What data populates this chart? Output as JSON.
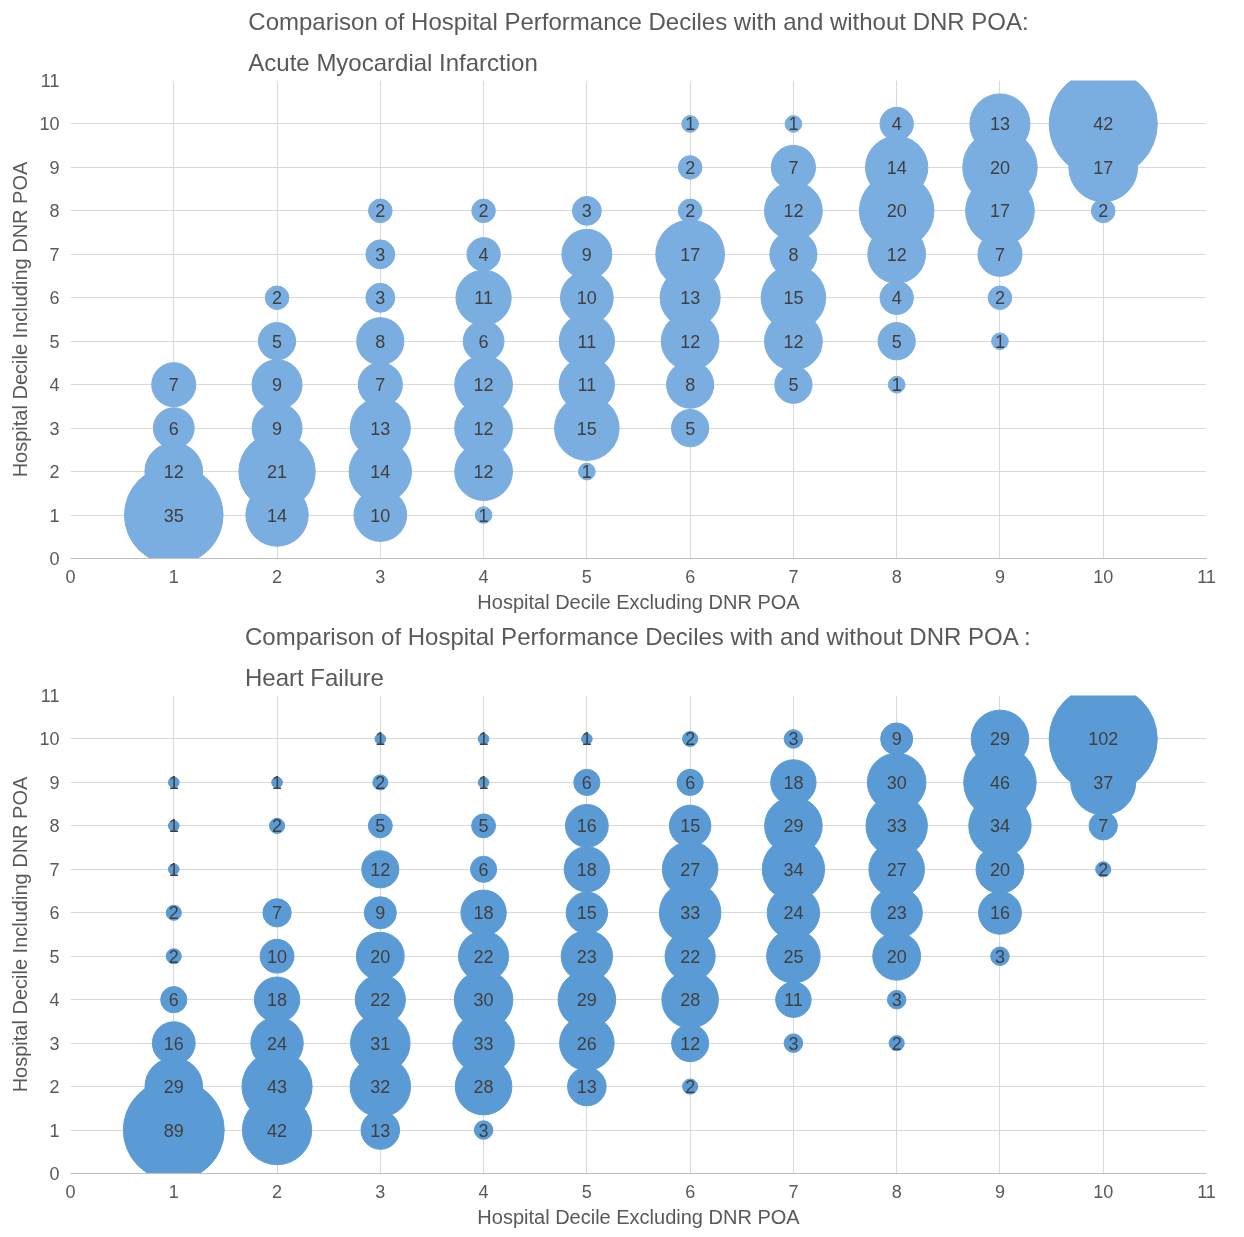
{
  "chart_data": [
    {
      "type": "bubble",
      "title": "Comparison of Hospital Performance Deciles with and without DNR POA:\nAcute Myocardial Infarction",
      "xlabel": "Hospital Decile Excluding DNR POA",
      "ylabel": "Hospital Decile Including DNR POA",
      "color": "#7aade0",
      "xlim": [
        0,
        11
      ],
      "ylim": [
        0,
        11
      ],
      "xticks": [
        0,
        1,
        2,
        3,
        4,
        5,
        6,
        7,
        8,
        9,
        10,
        11
      ],
      "yticks": [
        0,
        1,
        2,
        3,
        4,
        5,
        6,
        7,
        8,
        9,
        10,
        11
      ],
      "grid": true,
      "x": [
        1,
        1,
        1,
        1,
        2,
        2,
        2,
        2,
        2,
        2,
        3,
        3,
        3,
        3,
        3,
        3,
        3,
        3,
        4,
        4,
        4,
        4,
        4,
        4,
        4,
        4,
        5,
        5,
        5,
        5,
        5,
        5,
        5,
        6,
        6,
        6,
        6,
        6,
        6,
        6,
        6,
        7,
        7,
        7,
        7,
        7,
        7,
        7,
        8,
        8,
        8,
        8,
        8,
        8,
        8,
        9,
        9,
        9,
        9,
        9,
        9,
        10,
        10,
        10
      ],
      "values": [
        4,
        3,
        2,
        1,
        6,
        5,
        4,
        3,
        2,
        1,
        8,
        7,
        6,
        5,
        4,
        3,
        2,
        1,
        8,
        7,
        6,
        5,
        4,
        3,
        2,
        1,
        8,
        7,
        6,
        5,
        4,
        3,
        2,
        10,
        9,
        8,
        7,
        6,
        5,
        4,
        3,
        10,
        9,
        8,
        7,
        6,
        5,
        4,
        10,
        9,
        8,
        7,
        6,
        5,
        4,
        10,
        9,
        8,
        7,
        6,
        5,
        10,
        9,
        8
      ],
      "sizes": [
        7,
        6,
        12,
        35,
        2,
        5,
        9,
        9,
        21,
        14,
        2,
        3,
        3,
        8,
        7,
        13,
        14,
        10,
        2,
        4,
        11,
        6,
        12,
        12,
        12,
        1,
        3,
        9,
        10,
        11,
        11,
        15,
        1,
        1,
        2,
        2,
        17,
        13,
        12,
        8,
        5,
        1,
        7,
        12,
        8,
        15,
        12,
        5,
        4,
        14,
        20,
        12,
        4,
        5,
        1,
        13,
        20,
        17,
        7,
        2,
        1,
        42,
        17,
        2
      ],
      "value_labels": [
        "7",
        "6",
        "12",
        "35",
        "2",
        "5",
        "9",
        "9",
        "21",
        "14",
        "2",
        "3",
        "3",
        "8",
        "7",
        "13",
        "14",
        "10",
        "2",
        "4",
        "11",
        "6",
        "12",
        "12",
        "12",
        "1",
        "3",
        "9",
        "10",
        "11",
        "11",
        "15",
        "1",
        "1",
        "2",
        "2",
        "17",
        "13",
        "12",
        "8",
        "5",
        "1",
        "7",
        "12",
        "8",
        "15",
        "12",
        "5",
        "4",
        "14",
        "20",
        "12",
        "4",
        "5",
        "1",
        "13",
        "20",
        "17",
        "7",
        "2",
        "1",
        "42",
        "17",
        "2"
      ]
    },
    {
      "type": "bubble",
      "title": "Comparison of Hospital Performance Deciles with and without DNR POA :\nHeart Failure",
      "xlabel": "Hospital Decile Excluding DNR POA",
      "ylabel": "Hospital Decile Including DNR POA",
      "color": "#5b9bd5",
      "xlim": [
        0,
        11
      ],
      "ylim": [
        0,
        11
      ],
      "xticks": [
        0,
        1,
        2,
        3,
        4,
        5,
        6,
        7,
        8,
        9,
        10,
        11
      ],
      "yticks": [
        0,
        1,
        2,
        3,
        4,
        5,
        6,
        7,
        8,
        9,
        10,
        11
      ],
      "grid": true,
      "x": [
        1,
        1,
        1,
        1,
        1,
        1,
        1,
        1,
        1,
        2,
        2,
        2,
        2,
        2,
        2,
        2,
        2,
        3,
        3,
        3,
        3,
        3,
        3,
        3,
        3,
        3,
        3,
        4,
        4,
        4,
        4,
        4,
        4,
        4,
        4,
        4,
        4,
        5,
        5,
        5,
        5,
        5,
        5,
        5,
        5,
        5,
        6,
        6,
        6,
        6,
        6,
        6,
        6,
        6,
        6,
        7,
        7,
        7,
        7,
        7,
        7,
        7,
        7,
        8,
        8,
        8,
        8,
        8,
        8,
        8,
        8,
        9,
        9,
        9,
        9,
        9,
        9,
        10,
        10,
        10,
        10
      ],
      "values": [
        9,
        8,
        7,
        6,
        5,
        4,
        3,
        2,
        1,
        9,
        8,
        6,
        5,
        4,
        3,
        2,
        1,
        10,
        9,
        8,
        7,
        6,
        5,
        4,
        3,
        2,
        1,
        10,
        9,
        8,
        7,
        6,
        5,
        4,
        3,
        2,
        1,
        10,
        9,
        8,
        7,
        6,
        5,
        4,
        3,
        2,
        10,
        9,
        8,
        7,
        6,
        5,
        4,
        3,
        2,
        10,
        9,
        8,
        7,
        6,
        5,
        4,
        3,
        10,
        9,
        8,
        7,
        6,
        5,
        4,
        3,
        10,
        9,
        8,
        7,
        6,
        5,
        10,
        9,
        8,
        7
      ],
      "sizes": [
        1,
        1,
        1,
        2,
        2,
        6,
        16,
        29,
        89,
        1,
        2,
        7,
        10,
        18,
        24,
        43,
        42,
        1,
        2,
        5,
        12,
        9,
        20,
        22,
        31,
        32,
        13,
        1,
        1,
        5,
        6,
        18,
        22,
        30,
        33,
        28,
        3,
        1,
        6,
        16,
        18,
        15,
        23,
        29,
        26,
        13,
        2,
        6,
        15,
        27,
        33,
        22,
        28,
        12,
        2,
        3,
        18,
        29,
        34,
        24,
        25,
        11,
        3,
        9,
        30,
        33,
        27,
        23,
        20,
        3,
        2,
        29,
        46,
        34,
        20,
        16,
        3,
        102,
        37,
        7,
        2
      ],
      "value_labels": [
        "1",
        "1",
        "1",
        "2",
        "2",
        "6",
        "16",
        "29",
        "89",
        "1",
        "2",
        "7",
        "10",
        "18",
        "24",
        "43",
        "42",
        "1",
        "2",
        "5",
        "12",
        "9",
        "20",
        "22",
        "31",
        "32",
        "13",
        "1",
        "1",
        "5",
        "6",
        "18",
        "22",
        "30",
        "33",
        "28",
        "3",
        "1",
        "6",
        "16",
        "18",
        "15",
        "23",
        "29",
        "26",
        "13",
        "2",
        "6",
        "15",
        "27",
        "33",
        "22",
        "28",
        "12",
        "2",
        "3",
        "18",
        "29",
        "34",
        "24",
        "25",
        "11",
        "3",
        "9",
        "30",
        "33",
        "27",
        "23",
        "20",
        "3",
        "2",
        "29",
        "46",
        "34",
        "20",
        "16",
        "3",
        "102",
        "37",
        "7",
        "2"
      ]
    }
  ]
}
